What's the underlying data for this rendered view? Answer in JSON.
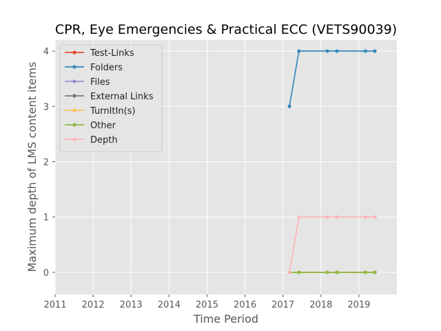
{
  "chart_data": {
    "type": "line",
    "title": "CPR, Eye Emergencies & Practical ECC (VETS90039)",
    "xlabel": "Time Period",
    "ylabel": "Maximum depth of LMS content items",
    "xlim": [
      2011.0,
      2020.0
    ],
    "ylim": [
      -0.4,
      4.2
    ],
    "xticks": [
      2011,
      2012,
      2013,
      2014,
      2015,
      2016,
      2017,
      2018,
      2019
    ],
    "yticks": [
      0,
      1,
      2,
      3,
      4
    ],
    "grid": true,
    "legend_position": "top-left",
    "x": [
      2017.17,
      2017.42,
      2018.17,
      2018.42,
      2019.17,
      2019.42
    ],
    "series": [
      {
        "name": "Test-Links",
        "color": "#E24A33",
        "values": [
          0,
          0,
          0,
          0,
          0,
          0
        ]
      },
      {
        "name": "Folders",
        "color": "#348ABD",
        "values": [
          3,
          4,
          4,
          4,
          4,
          4
        ]
      },
      {
        "name": "Files",
        "color": "#988ED5",
        "values": [
          0,
          0,
          0,
          0,
          0,
          0
        ]
      },
      {
        "name": "External Links",
        "color": "#777777",
        "values": [
          0,
          0,
          0,
          0,
          0,
          0
        ]
      },
      {
        "name": "TurnItIn(s)",
        "color": "#FBC15E",
        "values": [
          0,
          0,
          0,
          0,
          0,
          0
        ]
      },
      {
        "name": "Other",
        "color": "#8EBA42",
        "values": [
          0,
          0,
          0,
          0,
          0,
          0
        ]
      },
      {
        "name": "Depth",
        "color": "#FFB5B8",
        "values": [
          0,
          1,
          1,
          1,
          1,
          1
        ]
      }
    ]
  }
}
